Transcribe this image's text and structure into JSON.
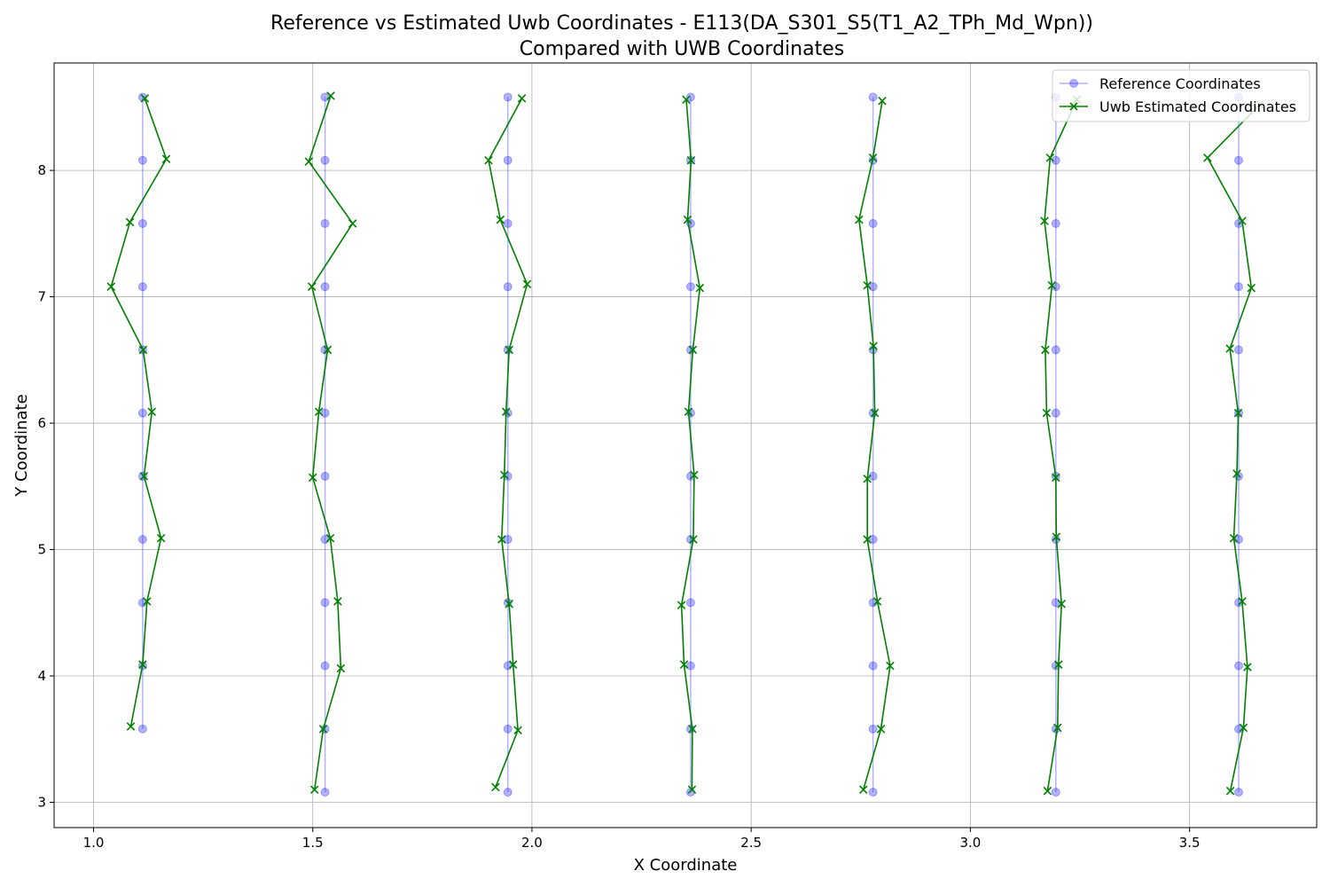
{
  "chart_data": {
    "type": "line",
    "title": "Reference vs Estimated Uwb Coordinates - E113(DA_S301_S5(T1_A2_TPh_Md_Wpn))",
    "subtitle": "Compared with UWB Coordinates",
    "xlabel": "X Coordinate",
    "ylabel": "Y Coordinate",
    "xlim": [
      0.91,
      3.79
    ],
    "ylim": [
      2.8,
      8.85
    ],
    "xticks": [
      1.0,
      1.5,
      2.0,
      2.5,
      3.0,
      3.5
    ],
    "xtick_labels": [
      "1.0",
      "1.5",
      "2.0",
      "2.5",
      "3.0",
      "3.5"
    ],
    "yticks": [
      3,
      4,
      5,
      6,
      7,
      8
    ],
    "ytick_labels": [
      "3",
      "4",
      "5",
      "6",
      "7",
      "8"
    ],
    "grid": true,
    "legend_position": "top-right",
    "series": [
      {
        "name": "Reference Coordinates",
        "color": "#0000ff",
        "marker": "circle",
        "line_alpha": 0.3,
        "segments": [
          {
            "x": [
              1.112,
              1.112,
              1.112,
              1.112,
              1.112,
              1.112,
              1.112,
              1.112,
              1.112,
              1.112,
              1.112
            ],
            "y": [
              8.58,
              8.08,
              7.58,
              7.08,
              6.58,
              6.08,
              5.58,
              5.08,
              4.58,
              4.08,
              3.58
            ]
          },
          {
            "x": [
              1.528,
              1.528,
              1.528,
              1.528,
              1.528,
              1.528,
              1.528,
              1.528,
              1.528,
              1.528,
              1.528,
              1.528
            ],
            "y": [
              8.58,
              8.08,
              7.58,
              7.08,
              6.58,
              6.08,
              5.58,
              5.08,
              4.58,
              4.08,
              3.58,
              3.08
            ]
          },
          {
            "x": [
              1.945,
              1.945,
              1.945,
              1.945,
              1.945,
              1.945,
              1.945,
              1.945,
              1.945,
              1.945,
              1.945,
              1.945
            ],
            "y": [
              8.58,
              8.08,
              7.58,
              7.08,
              6.58,
              6.08,
              5.58,
              5.08,
              4.58,
              4.08,
              3.58,
              3.08
            ]
          },
          {
            "x": [
              2.362,
              2.362,
              2.362,
              2.362,
              2.362,
              2.362,
              2.362,
              2.362,
              2.362,
              2.362,
              2.362,
              2.362
            ],
            "y": [
              8.58,
              8.08,
              7.58,
              7.08,
              6.58,
              6.08,
              5.58,
              5.08,
              4.58,
              4.08,
              3.58,
              3.08
            ]
          },
          {
            "x": [
              2.778,
              2.778,
              2.778,
              2.778,
              2.778,
              2.778,
              2.778,
              2.778,
              2.778,
              2.778,
              2.778,
              2.778
            ],
            "y": [
              8.58,
              8.08,
              7.58,
              7.08,
              6.58,
              6.08,
              5.58,
              5.08,
              4.58,
              4.08,
              3.58,
              3.08
            ]
          },
          {
            "x": [
              3.195,
              3.195,
              3.195,
              3.195,
              3.195,
              3.195,
              3.195,
              3.195,
              3.195,
              3.195,
              3.195,
              3.195
            ],
            "y": [
              8.58,
              8.08,
              7.58,
              7.08,
              6.58,
              6.08,
              5.58,
              5.08,
              4.58,
              4.08,
              3.58,
              3.08
            ]
          },
          {
            "x": [
              3.612,
              3.612,
              3.612,
              3.612,
              3.612,
              3.612,
              3.612,
              3.612,
              3.612,
              3.612,
              3.612,
              3.612
            ],
            "y": [
              8.58,
              8.08,
              7.58,
              7.08,
              6.58,
              6.08,
              5.58,
              5.08,
              4.58,
              4.08,
              3.58,
              3.08
            ]
          }
        ]
      },
      {
        "name": "Uwb Estimated Coordinates",
        "color": "#008000",
        "marker": "x",
        "line_alpha": 1.0,
        "segments": [
          {
            "x": [
              1.117,
              1.166,
              1.083,
              1.04,
              1.113,
              1.133,
              1.115,
              1.154,
              1.122,
              1.112,
              1.085
            ],
            "y": [
              8.57,
              8.09,
              7.59,
              7.08,
              6.58,
              6.09,
              5.58,
              5.09,
              4.59,
              4.09,
              3.6
            ]
          },
          {
            "x": [
              1.541,
              1.491,
              1.591,
              1.498,
              1.534,
              1.514,
              1.5,
              1.54,
              1.557,
              1.564,
              1.524,
              1.504
            ],
            "y": [
              8.59,
              8.07,
              7.58,
              7.08,
              6.58,
              6.09,
              5.57,
              5.09,
              4.59,
              4.06,
              3.58,
              3.1
            ]
          },
          {
            "x": [
              1.977,
              1.901,
              1.928,
              1.989,
              1.948,
              1.941,
              1.937,
              1.931,
              1.948,
              1.957,
              1.968,
              1.917
            ],
            "y": [
              8.57,
              8.08,
              7.61,
              7.1,
              6.58,
              6.09,
              5.59,
              5.08,
              4.57,
              4.09,
              3.57,
              3.12
            ]
          },
          {
            "x": [
              2.352,
              2.363,
              2.355,
              2.383,
              2.367,
              2.357,
              2.37,
              2.368,
              2.341,
              2.347,
              2.366,
              2.365
            ],
            "y": [
              8.56,
              8.08,
              7.61,
              7.07,
              6.58,
              6.09,
              5.59,
              5.08,
              4.56,
              4.09,
              3.58,
              3.1
            ]
          },
          {
            "x": [
              2.799,
              2.778,
              2.746,
              2.765,
              2.779,
              2.782,
              2.765,
              2.765,
              2.788,
              2.817,
              2.796,
              2.756
            ],
            "y": [
              8.55,
              8.1,
              7.61,
              7.09,
              6.61,
              6.08,
              5.56,
              5.08,
              4.59,
              4.08,
              3.58,
              3.1
            ]
          },
          {
            "x": [
              3.243,
              3.182,
              3.169,
              3.186,
              3.171,
              3.174,
              3.195,
              3.196,
              3.208,
              3.201,
              3.199,
              3.176
            ],
            "y": [
              8.56,
              8.1,
              7.6,
              7.09,
              6.58,
              6.08,
              5.57,
              5.1,
              4.57,
              4.09,
              3.59,
              3.09
            ]
          },
          {
            "x": [
              3.66,
              3.541,
              3.62,
              3.641,
              3.592,
              3.611,
              3.608,
              3.601,
              3.62,
              3.632,
              3.623,
              3.593
            ],
            "y": [
              8.52,
              8.1,
              7.6,
              7.07,
              6.59,
              6.08,
              5.6,
              5.09,
              4.59,
              4.07,
              3.59,
              3.09
            ]
          }
        ]
      }
    ]
  }
}
